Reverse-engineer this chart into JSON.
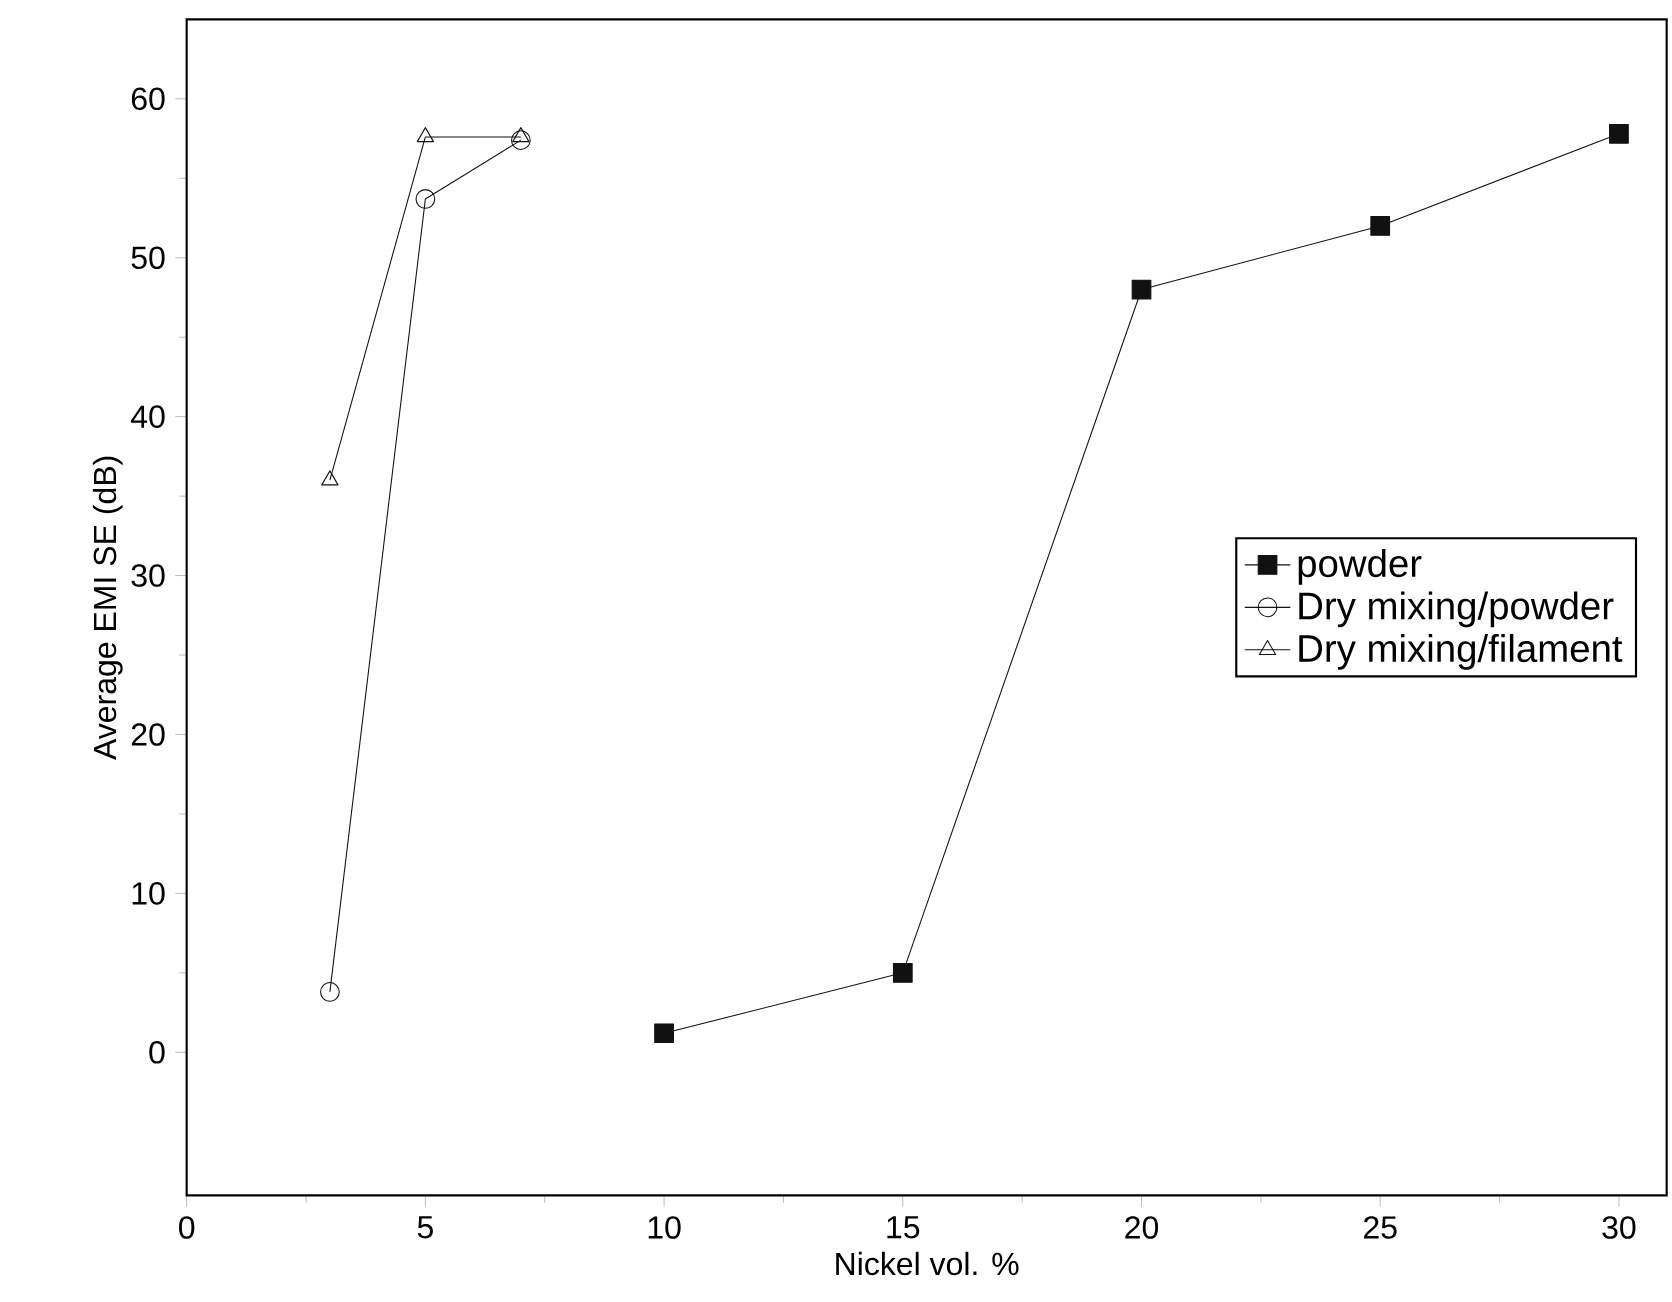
{
  "chart_data": {
    "type": "line",
    "xlabel": "Nickel vol. %",
    "ylabel": "Average EMI SE (dB)",
    "xlim": [
      0,
      31
    ],
    "ylim": [
      -9,
      65
    ],
    "xticks": [
      0,
      5,
      10,
      15,
      20,
      25,
      30
    ],
    "yticks": [
      0,
      10,
      20,
      30,
      40,
      50,
      60
    ],
    "legend": "right",
    "grid": false,
    "line_style": "solid",
    "series": [
      {
        "name": "powder",
        "color": "#111111",
        "marker": "square",
        "x": [
          10,
          15,
          20,
          25,
          30
        ],
        "values": [
          1.2,
          5,
          48,
          52,
          57.8
        ]
      },
      {
        "name": "Dry mixing/powder",
        "color": "#111111",
        "marker": "circle",
        "x": [
          3,
          5,
          7
        ],
        "values": [
          3.8,
          53.7,
          57.4
        ]
      },
      {
        "name": "Dry mixing/filament",
        "color": "#111111",
        "marker": "triangle",
        "x": [
          3,
          5,
          7
        ],
        "values": [
          36,
          57.6,
          57.6
        ]
      }
    ]
  }
}
